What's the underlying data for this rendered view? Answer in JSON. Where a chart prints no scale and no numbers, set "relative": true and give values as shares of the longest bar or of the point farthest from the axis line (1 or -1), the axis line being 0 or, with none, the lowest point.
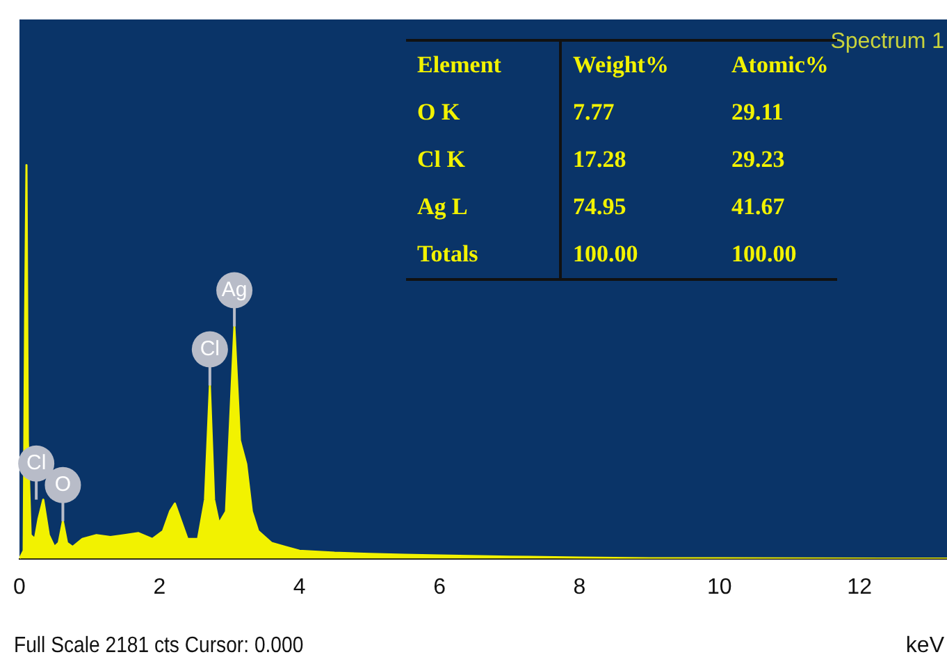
{
  "chart_data": {
    "type": "area",
    "title": "Spectrum 1",
    "xlabel": "keV",
    "relative": true,
    "color": "#f2f200",
    "grid": false,
    "legend": false,
    "x": [
      0,
      0.06,
      0.08,
      0.1,
      0.12,
      0.16,
      0.22,
      0.27,
      0.34,
      0.42,
      0.5,
      0.56,
      0.62,
      0.68,
      0.76,
      0.9,
      1.1,
      1.3,
      1.5,
      1.7,
      1.9,
      2.05,
      2.15,
      2.22,
      2.3,
      2.4,
      2.55,
      2.65,
      2.72,
      2.78,
      2.85,
      2.95,
      3.07,
      3.15,
      3.24,
      3.32,
      3.41,
      3.6,
      3.8,
      4.0,
      4.5,
      5.0,
      5.5,
      6.0,
      7.0,
      8.0,
      9.0,
      10.0,
      13.25
    ],
    "values": [
      0,
      0.02,
      0.6,
      1.0,
      0.3,
      0.06,
      0.05,
      0.1,
      0.15,
      0.06,
      0.03,
      0.04,
      0.095,
      0.04,
      0.03,
      0.05,
      0.06,
      0.055,
      0.06,
      0.065,
      0.05,
      0.07,
      0.12,
      0.14,
      0.1,
      0.05,
      0.05,
      0.15,
      0.44,
      0.15,
      0.09,
      0.12,
      0.59,
      0.3,
      0.24,
      0.12,
      0.07,
      0.04,
      0.03,
      0.02,
      0.015,
      0.012,
      0.01,
      0.008,
      0.005,
      0.003,
      0.001,
      0.001,
      0
    ],
    "xlim": [
      0,
      13.25
    ],
    "xticks": [
      0,
      2,
      4,
      6,
      8,
      10,
      12
    ],
    "annotations": [
      {
        "text": "Cl",
        "x": 0.24,
        "y": 0.15
      },
      {
        "text": "O",
        "x": 0.62,
        "y": 0.095
      },
      {
        "text": "Cl",
        "x": 2.72,
        "y": 0.44
      },
      {
        "text": "Ag",
        "x": 3.07,
        "y": 0.59
      },
      "Element",
      "Weight%",
      "Atomic%",
      "O K",
      "7.77",
      "29.11",
      "Cl K",
      "17.28",
      "29.23",
      "Ag L",
      "74.95",
      "41.67",
      "Totals",
      "100.00",
      "100.00",
      "Full Scale 2181 cts Cursor: 0.000"
    ]
  }
}
